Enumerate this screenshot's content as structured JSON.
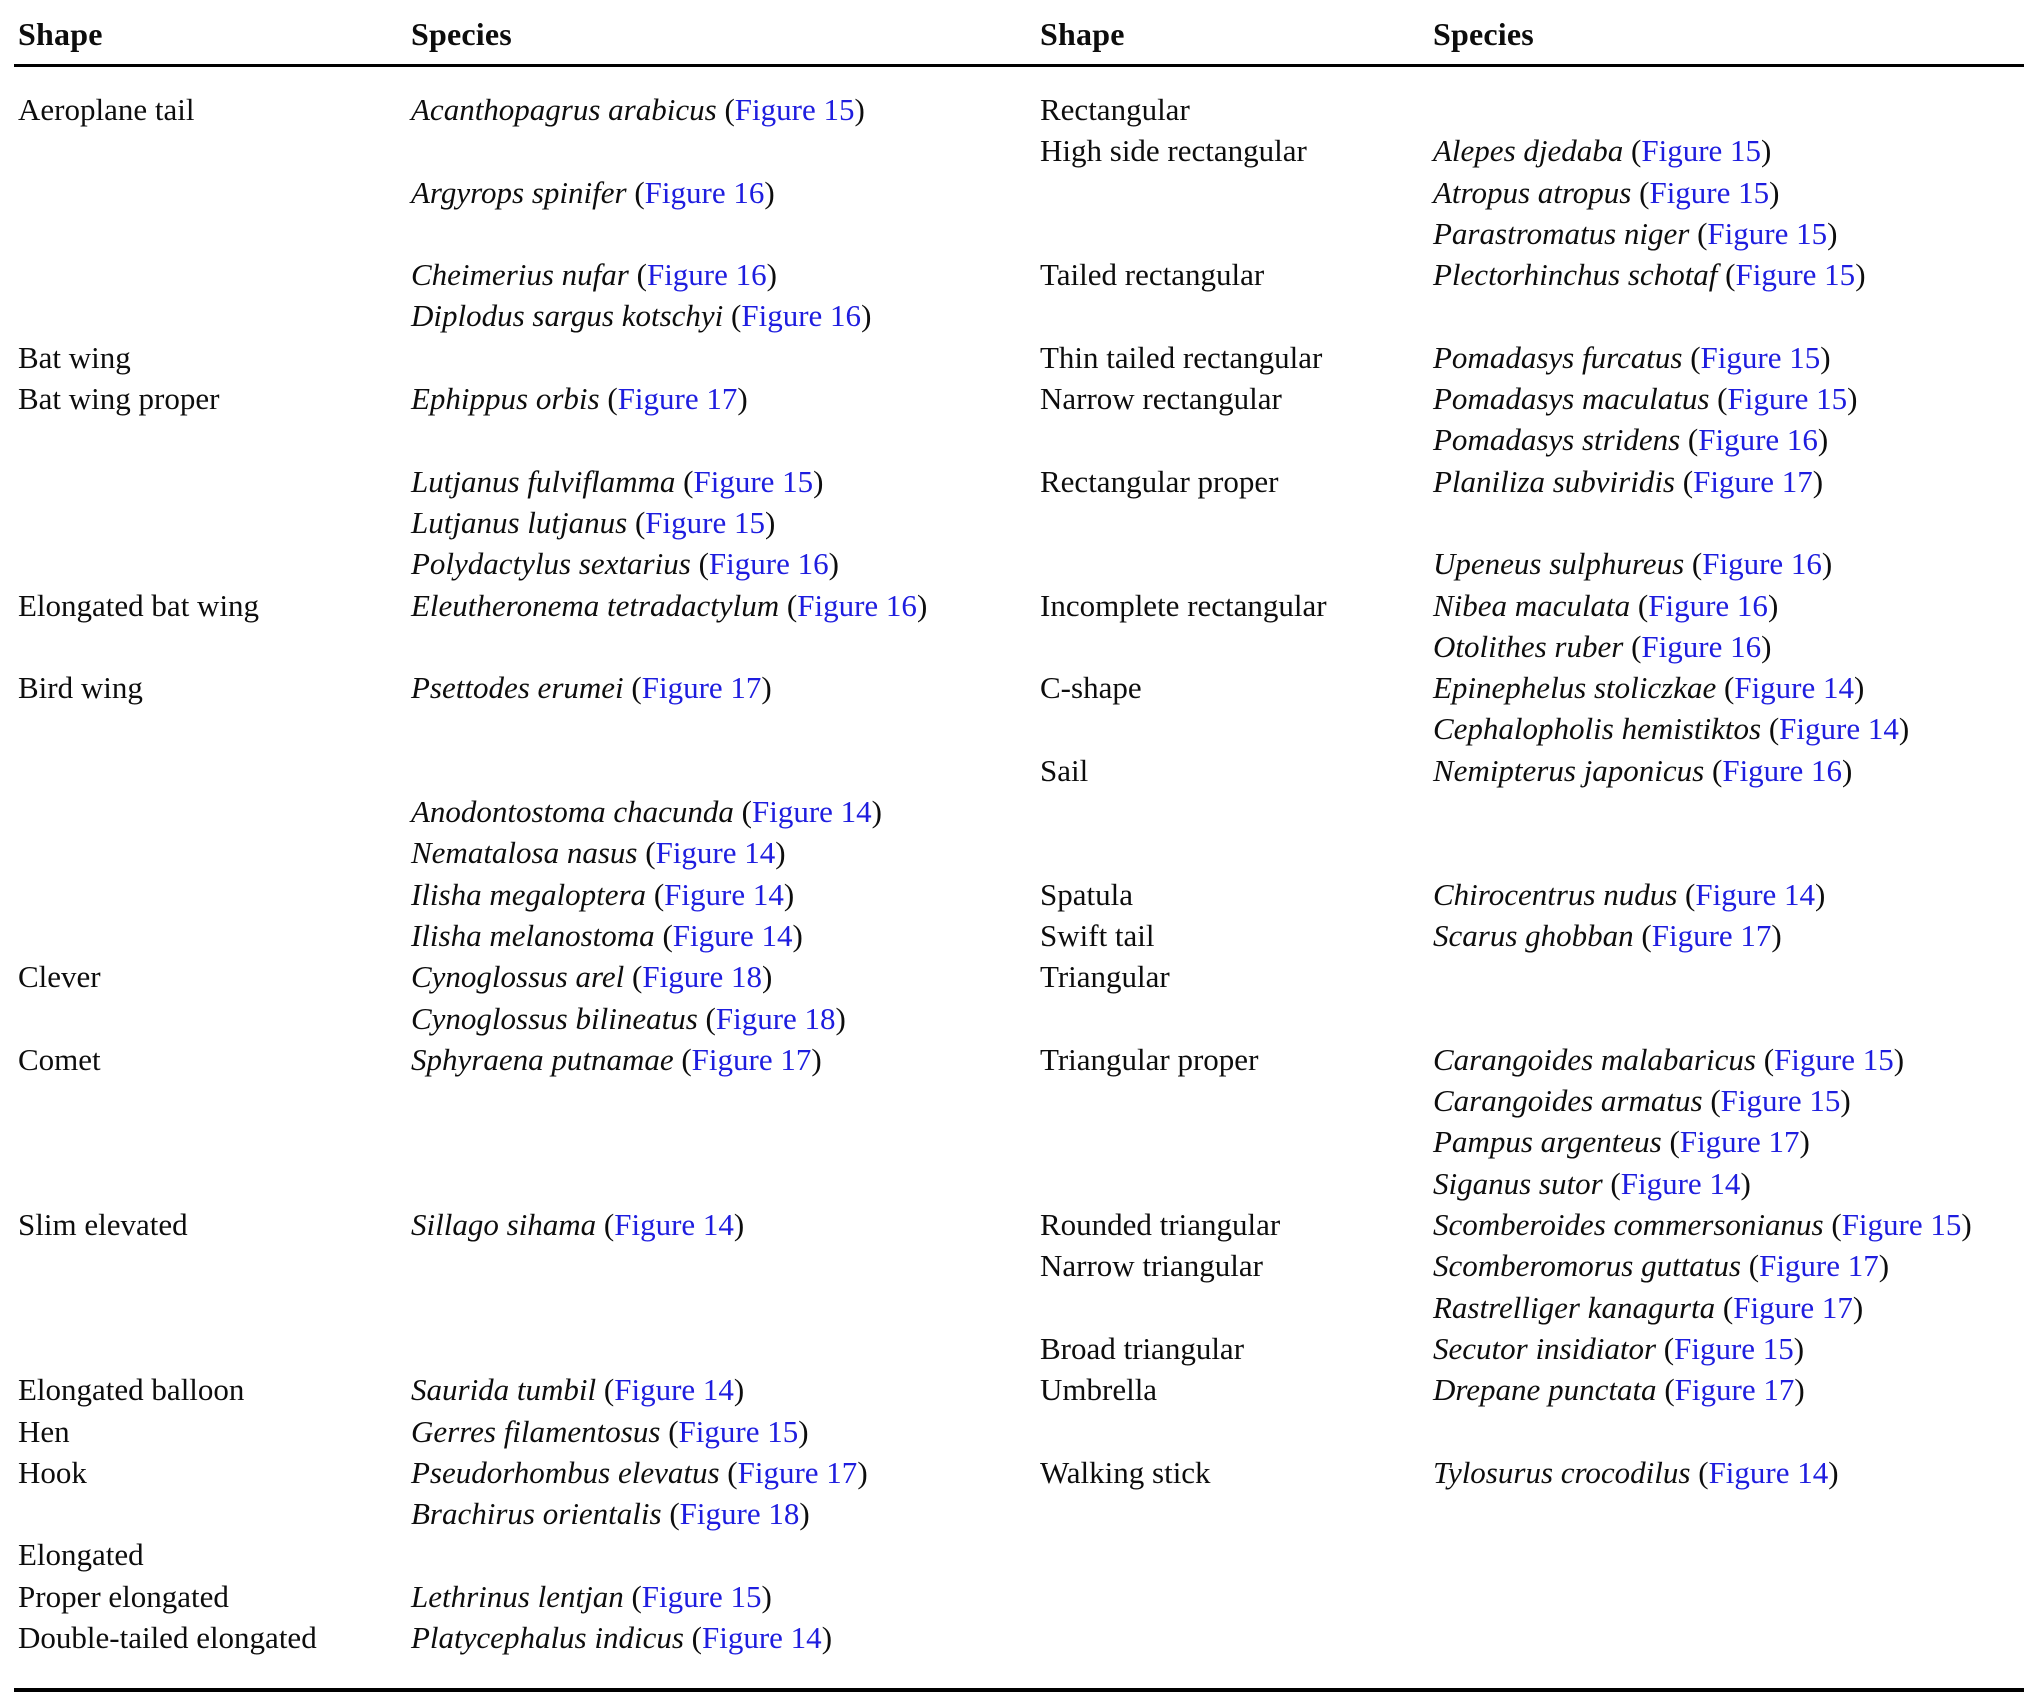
{
  "page": {
    "background": "#ffffff",
    "text_color": "#0d0d0d",
    "link_color": "#1e1ddf",
    "rule_color": "#000000"
  },
  "table": {
    "headers": [
      "Shape",
      "Species",
      "Shape",
      "Species"
    ],
    "rows": [
      {
        "shape1": "Aeroplane tail",
        "species1": "Acanthopagrus arabicus",
        "fig1": "Figure 15",
        "shape2": "Rectangular",
        "species2": "",
        "fig2": ""
      },
      {
        "shape1": "",
        "species1": "",
        "fig1": "",
        "shape2": "High side rectangular",
        "species2": "Alepes djedaba",
        "fig2": "Figure 15"
      },
      {
        "shape1": "",
        "species1": "Argyrops spinifer",
        "fig1": "Figure 16",
        "shape2": "",
        "species2": "Atropus atropus",
        "fig2": "Figure 15"
      },
      {
        "shape1": "",
        "species1": "",
        "fig1": "",
        "shape2": "",
        "species2": "Parastromatus niger",
        "fig2": "Figure 15"
      },
      {
        "shape1": "",
        "species1": "Cheimerius nufar",
        "fig1": "Figure 16",
        "shape2": "Tailed rectangular",
        "species2": "Plectorhinchus schotaf",
        "fig2": "Figure 15"
      },
      {
        "shape1": "",
        "species1": "Diplodus sargus kotschyi",
        "fig1": "Figure 16",
        "shape2": "",
        "species2": "",
        "fig2": ""
      },
      {
        "shape1": "Bat wing",
        "species1": "",
        "fig1": "",
        "shape2": "Thin tailed rectangular",
        "species2": "Pomadasys furcatus",
        "fig2": "Figure 15"
      },
      {
        "shape1": "Bat wing proper",
        "species1": "Ephippus orbis",
        "fig1": "Figure 17",
        "shape2": "Narrow rectangular",
        "species2": "Pomadasys maculatus",
        "fig2": "Figure 15"
      },
      {
        "shape1": "",
        "species1": "",
        "fig1": "",
        "shape2": "",
        "species2": "Pomadasys stridens",
        "fig2": "Figure 16"
      },
      {
        "shape1": "",
        "species1": "Lutjanus fulviflamma",
        "fig1": "Figure 15",
        "shape2": "Rectangular proper",
        "species2": "Planiliza subviridis",
        "fig2": "Figure 17"
      },
      {
        "shape1": "",
        "species1": "Lutjanus lutjanus",
        "fig1": "Figure 15",
        "shape2": "",
        "species2": "",
        "fig2": ""
      },
      {
        "shape1": "",
        "species1": "Polydactylus sextarius",
        "fig1": "Figure 16",
        "shape2": "",
        "species2": "Upeneus sulphureus",
        "fig2": "Figure 16"
      },
      {
        "shape1": "Elongated bat wing",
        "species1": "Eleutheronema tetradactylum",
        "fig1": "Figure 16",
        "shape2": "Incomplete rectangular",
        "species2": "Nibea maculata",
        "fig2": "Figure 16"
      },
      {
        "shape1": "",
        "species1": "",
        "fig1": "",
        "shape2": "",
        "species2": "Otolithes ruber",
        "fig2": "Figure 16"
      },
      {
        "shape1": "Bird wing",
        "species1": "Psettodes erumei",
        "fig1": "Figure 17",
        "shape2": "C-shape",
        "species2": "Epinephelus stoliczkae",
        "fig2": "Figure 14"
      },
      {
        "shape1": "",
        "species1": "",
        "fig1": "",
        "shape2": "",
        "species2": "Cephalopholis hemistiktos",
        "fig2": "Figure 14"
      },
      {
        "shape1": "",
        "species1": "",
        "fig1": "",
        "shape2": "Sail",
        "species2": "Nemipterus japonicus",
        "fig2": "Figure 16"
      },
      {
        "shape1": "",
        "species1": "Anodontostoma chacunda",
        "fig1": "Figure 14",
        "shape2": "",
        "species2": "",
        "fig2": ""
      },
      {
        "shape1": "",
        "species1": "Nematalosa nasus",
        "fig1": "Figure 14",
        "shape2": "",
        "species2": "",
        "fig2": ""
      },
      {
        "shape1": "",
        "species1": "Ilisha megaloptera",
        "fig1": "Figure 14",
        "shape2": "Spatula",
        "species2": "Chirocentrus nudus",
        "fig2": "Figure 14"
      },
      {
        "shape1": "",
        "species1": "Ilisha melanostoma",
        "fig1": "Figure 14",
        "shape2": "Swift tail",
        "species2": "Scarus ghobban",
        "fig2": "Figure 17"
      },
      {
        "shape1": "Clever",
        "species1": "Cynoglossus arel",
        "fig1": "Figure 18",
        "shape2": "Triangular",
        "species2": "",
        "fig2": ""
      },
      {
        "shape1": "",
        "species1": "Cynoglossus bilineatus",
        "fig1": "Figure 18",
        "shape2": "",
        "species2": "",
        "fig2": ""
      },
      {
        "shape1": "Comet",
        "species1": "Sphyraena putnamae",
        "fig1": "Figure 17",
        "shape2": "Triangular proper",
        "species2": "Carangoides malabaricus",
        "fig2": "Figure 15"
      },
      {
        "shape1": "",
        "species1": "",
        "fig1": "",
        "shape2": "",
        "species2": "Carangoides armatus",
        "fig2": "Figure 15"
      },
      {
        "shape1": "",
        "species1": "",
        "fig1": "",
        "shape2": "",
        "species2": "Pampus argenteus",
        "fig2": "Figure 17"
      },
      {
        "shape1": "",
        "species1": "",
        "fig1": "",
        "shape2": "",
        "species2": "Siganus sutor",
        "fig2": "Figure 14"
      },
      {
        "shape1": "Slim elevated",
        "species1": "Sillago sihama",
        "fig1": "Figure 14",
        "shape2": "Rounded triangular",
        "species2": "Scomberoides commersonianus",
        "fig2": "Figure 15"
      },
      {
        "shape1": "",
        "species1": "",
        "fig1": "",
        "shape2": "Narrow triangular",
        "species2": "Scomberomorus guttatus",
        "fig2": "Figure 17"
      },
      {
        "shape1": "",
        "species1": "",
        "fig1": "",
        "shape2": "",
        "species2": "Rastrelliger kanagurta",
        "fig2": "Figure 17"
      },
      {
        "shape1": "",
        "species1": "",
        "fig1": "",
        "shape2": "Broad triangular",
        "species2": "Secutor insidiator",
        "fig2": "Figure 15"
      },
      {
        "shape1": "Elongated balloon",
        "species1": "Saurida tumbil",
        "fig1": "Figure 14",
        "shape2": "Umbrella",
        "species2": "Drepane punctata",
        "fig2": "Figure 17"
      },
      {
        "shape1": "Hen",
        "species1": "Gerres filamentosus",
        "fig1": "Figure 15",
        "shape2": "",
        "species2": "",
        "fig2": ""
      },
      {
        "shape1": "Hook",
        "species1": "Pseudorhombus elevatus",
        "fig1": "Figure 17",
        "shape2": "Walking stick",
        "species2": "Tylosurus crocodilus",
        "fig2": "Figure 14"
      },
      {
        "shape1": "",
        "species1": "Brachirus orientalis",
        "fig1": "Figure 18",
        "shape2": "",
        "species2": "",
        "fig2": ""
      },
      {
        "shape1": "Elongated",
        "species1": "",
        "fig1": "",
        "shape2": "",
        "species2": "",
        "fig2": ""
      },
      {
        "shape1": "Proper elongated",
        "species1": "Lethrinus lentjan",
        "fig1": "Figure 15",
        "shape2": "",
        "species2": "",
        "fig2": ""
      },
      {
        "shape1": "Double-tailed elongated",
        "species1": "Platycephalus indicus",
        "fig1": "Figure 14",
        "shape2": "",
        "species2": "",
        "fig2": ""
      }
    ]
  }
}
